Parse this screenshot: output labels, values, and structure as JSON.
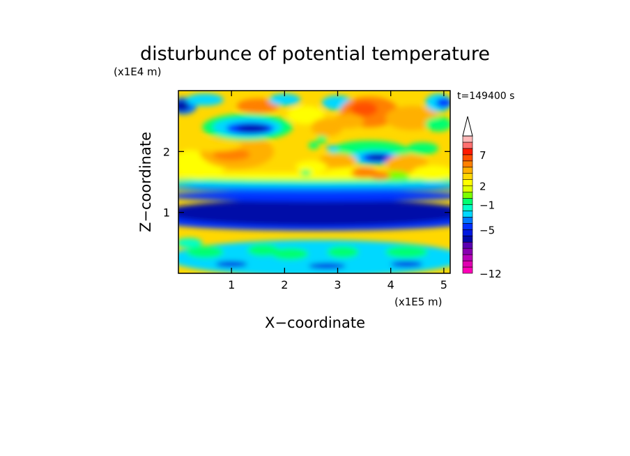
{
  "chart_data": {
    "type": "heatmap",
    "title": "disturbunce of potential temperature",
    "time_label": "t=149400 s",
    "xlabel": "X−coordinate",
    "ylabel": "Z−coordinate",
    "x_scale_label": "(x1E5 m)",
    "y_scale_label": "(x1E4 m)",
    "xlim": [
      0,
      5.12
    ],
    "ylim": [
      0,
      3.0
    ],
    "x_ticks": [
      "1",
      "2",
      "3",
      "4",
      "5"
    ],
    "y_ticks": [
      "1",
      "2"
    ],
    "colorbar": {
      "levels": [
        -12,
        -11,
        -10,
        -9,
        -8,
        -7,
        -6,
        -5,
        -4,
        -3,
        -2,
        -1,
        0,
        1,
        2,
        3,
        4,
        5,
        6,
        7,
        8,
        9,
        10
      ],
      "tick_labels": [
        "−12",
        "−5",
        "−1",
        "2",
        "7"
      ],
      "tick_values": [
        -12,
        -5,
        -1,
        2,
        7
      ],
      "colors": [
        "#ff00b8",
        "#e000b0",
        "#b800b8",
        "#8800b0",
        "#5a00b0",
        "#0008a8",
        "#0018e0",
        "#0030ff",
        "#0078ff",
        "#00d8ff",
        "#00ffc8",
        "#00ff70",
        "#7cff00",
        "#e0ff00",
        "#ffff00",
        "#ffd800",
        "#ffb000",
        "#ff8000",
        "#ff5000",
        "#ff1a00",
        "#ff7070",
        "#ffb8b8"
      ],
      "extend": "max"
    }
  }
}
